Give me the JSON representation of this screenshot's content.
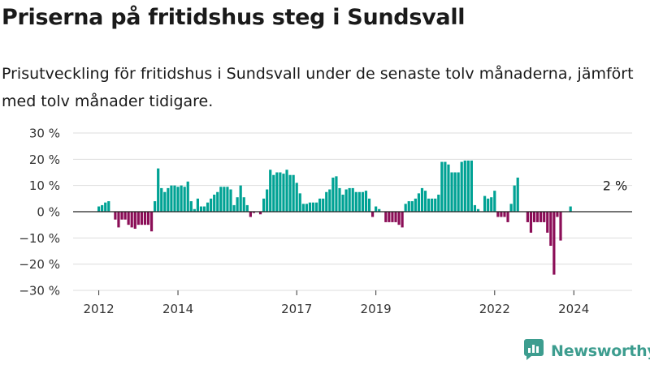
{
  "header": {
    "title": "Priserna på fritidshus steg i Sundsvall",
    "subtitle": "Prisutveckling för fritidshus i Sundsvall under de senaste tolv månaderna, jämfört med tolv månader tidigare."
  },
  "brand": {
    "name": "Newsworthy",
    "icon": "newsworthy-logo-icon"
  },
  "colors": {
    "positive": "#00a294",
    "negative": "#8b0e57",
    "grid": "#dddddd",
    "zero_line": "#222222",
    "brand": "#3d9d8f"
  },
  "chart_data": {
    "type": "bar",
    "title": "",
    "xlabel": "",
    "ylabel": "",
    "ylim": [
      -30,
      30
    ],
    "y_ticks": [
      30,
      20,
      10,
      0,
      -10,
      -20,
      -30
    ],
    "y_tick_labels": [
      "30 %",
      "20 %",
      "10 %",
      "0 %",
      "−10 %",
      "−20 %",
      "−30 %"
    ],
    "grid": true,
    "x_start": "2012-01",
    "x_ticks": [
      {
        "label": "2012",
        "date": "2012-01"
      },
      {
        "label": "2014",
        "date": "2014-01"
      },
      {
        "label": "2017",
        "date": "2017-01"
      },
      {
        "label": "2019",
        "date": "2019-01"
      },
      {
        "label": "2022",
        "date": "2022-01"
      },
      {
        "label": "2024",
        "date": "2024-01"
      }
    ],
    "annotation": {
      "text": "2 %",
      "date": "2025-02"
    },
    "values": [
      2,
      2.5,
      3.5,
      4,
      0,
      -3,
      -6,
      -3,
      -3,
      -5,
      -6,
      -6.5,
      -5,
      -5,
      -5,
      -5,
      -7.5,
      4,
      16.5,
      9,
      7.5,
      9,
      10,
      10,
      9.5,
      10,
      9.5,
      11.5,
      4,
      1,
      5,
      2,
      2,
      3.5,
      5,
      6.5,
      7.5,
      9.5,
      9.5,
      9.5,
      8.5,
      2.5,
      5.5,
      10,
      5.5,
      2.5,
      -2,
      -0.5,
      0,
      -1,
      5,
      8.5,
      16,
      14,
      15,
      15,
      14.5,
      16,
      14,
      14,
      11,
      7,
      3,
      3,
      3.5,
      3.5,
      3.5,
      5,
      5,
      7.5,
      8.5,
      13,
      13.5,
      9,
      6.5,
      8.5,
      9,
      9,
      7.5,
      7.5,
      7.5,
      8,
      5,
      -2,
      2,
      1,
      0,
      -4,
      -4,
      -4,
      -4,
      -5,
      -6,
      3,
      4,
      4,
      5,
      7,
      9,
      8,
      5,
      5,
      5,
      6.5,
      19,
      19,
      18,
      15,
      15,
      15,
      19,
      19.5,
      19.5,
      19.5,
      2.5,
      1,
      0,
      6,
      5,
      5.5,
      8,
      -2,
      -2,
      -2,
      -4,
      3,
      10,
      13,
      0,
      0,
      -4,
      -8,
      -4,
      -4,
      -4,
      -4,
      -8,
      -13,
      -24,
      -2,
      -11,
      0,
      0,
      2
    ]
  }
}
